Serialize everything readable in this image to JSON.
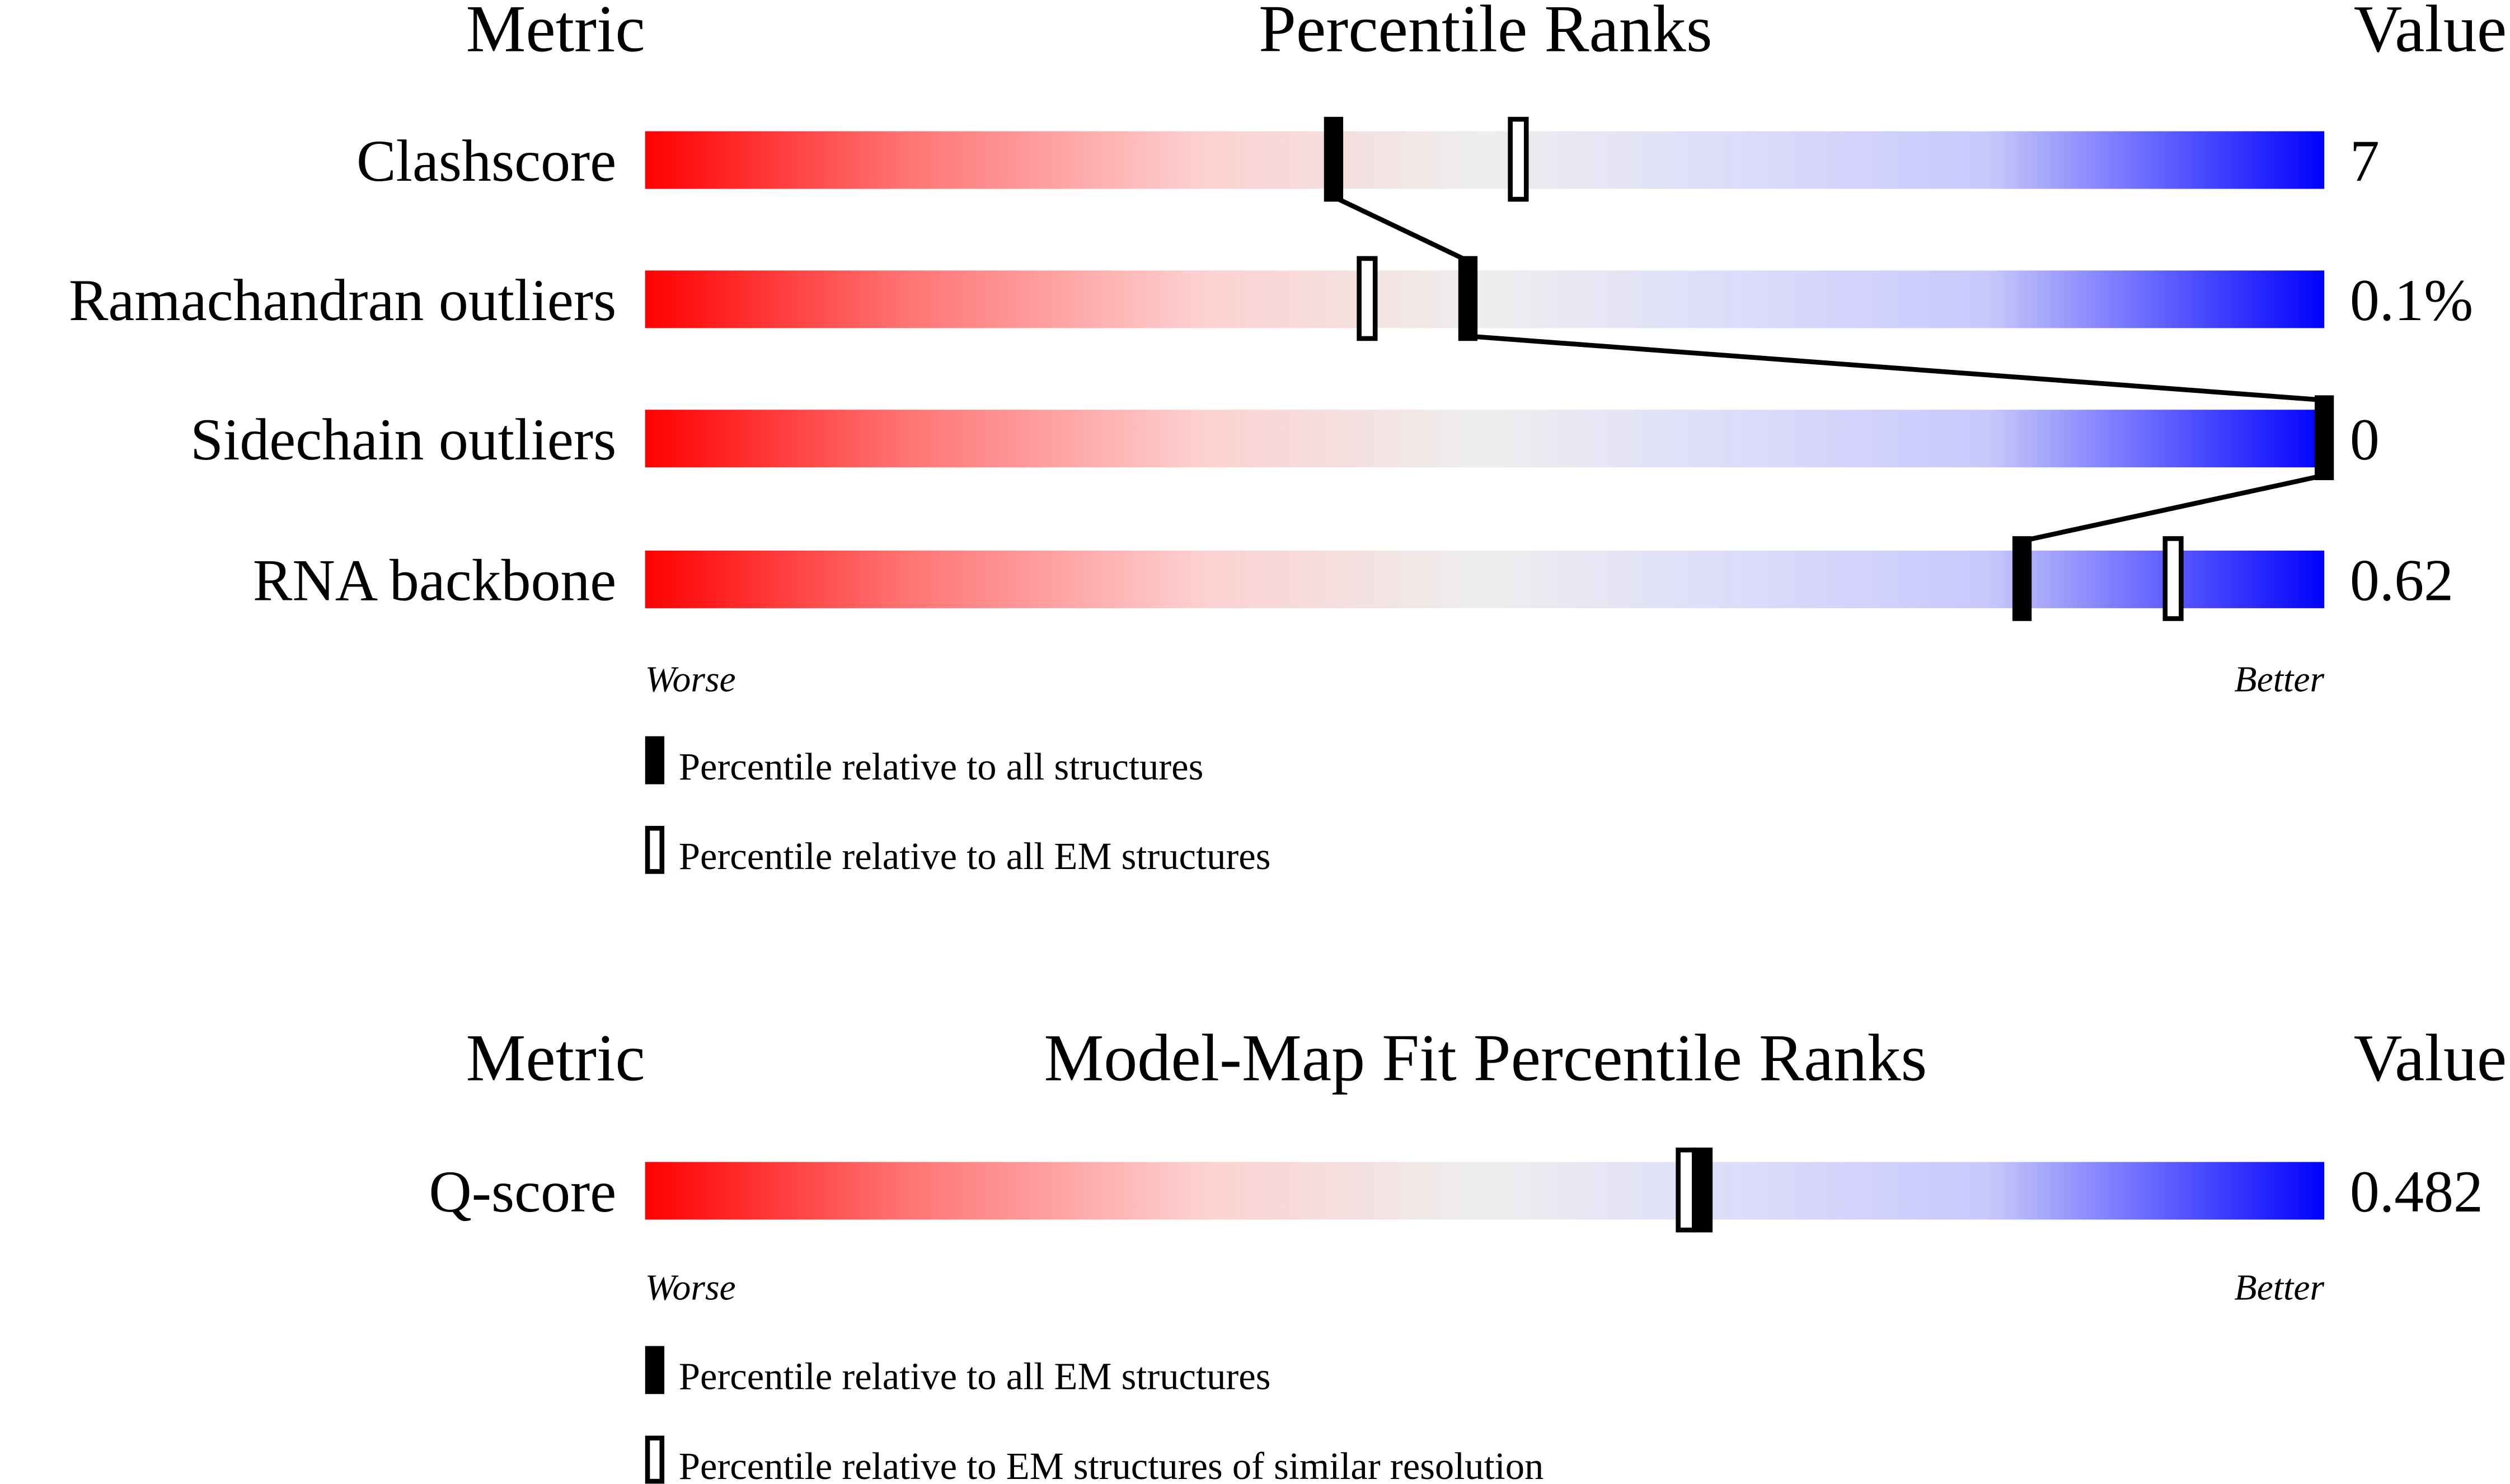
{
  "panels": [
    {
      "header": {
        "metric": "Metric",
        "title": "Percentile Ranks",
        "value": "Value"
      },
      "xlim": [
        0,
        100
      ],
      "rows": [
        {
          "metric": "Clashscore",
          "value": "7",
          "filled": 41,
          "open": 52
        },
        {
          "metric": "Ramachandran outliers",
          "value": "0.1%",
          "filled": 49,
          "open": 43
        },
        {
          "metric": "Sidechain outliers",
          "value": "0",
          "filled": 100
        },
        {
          "metric": "RNA backbone",
          "value": "0.62",
          "filled": 82,
          "open": 91
        }
      ],
      "worse": "Worse",
      "better": "Better",
      "legend": {
        "filled": "Percentile relative to all structures",
        "open": "Percentile relative to all EM structures"
      }
    },
    {
      "header": {
        "metric": "Metric",
        "title": "Model-Map Fit Percentile Ranks",
        "value": "Value"
      },
      "xlim": [
        0,
        100
      ],
      "rows": [
        {
          "metric": "Q-score",
          "value": "0.482",
          "filled": 63,
          "open": 62
        }
      ],
      "worse": "Worse",
      "better": "Better",
      "legend": {
        "filled": "Percentile relative to all EM structures",
        "open": "Percentile relative to EM structures of similar resolution"
      }
    }
  ]
}
